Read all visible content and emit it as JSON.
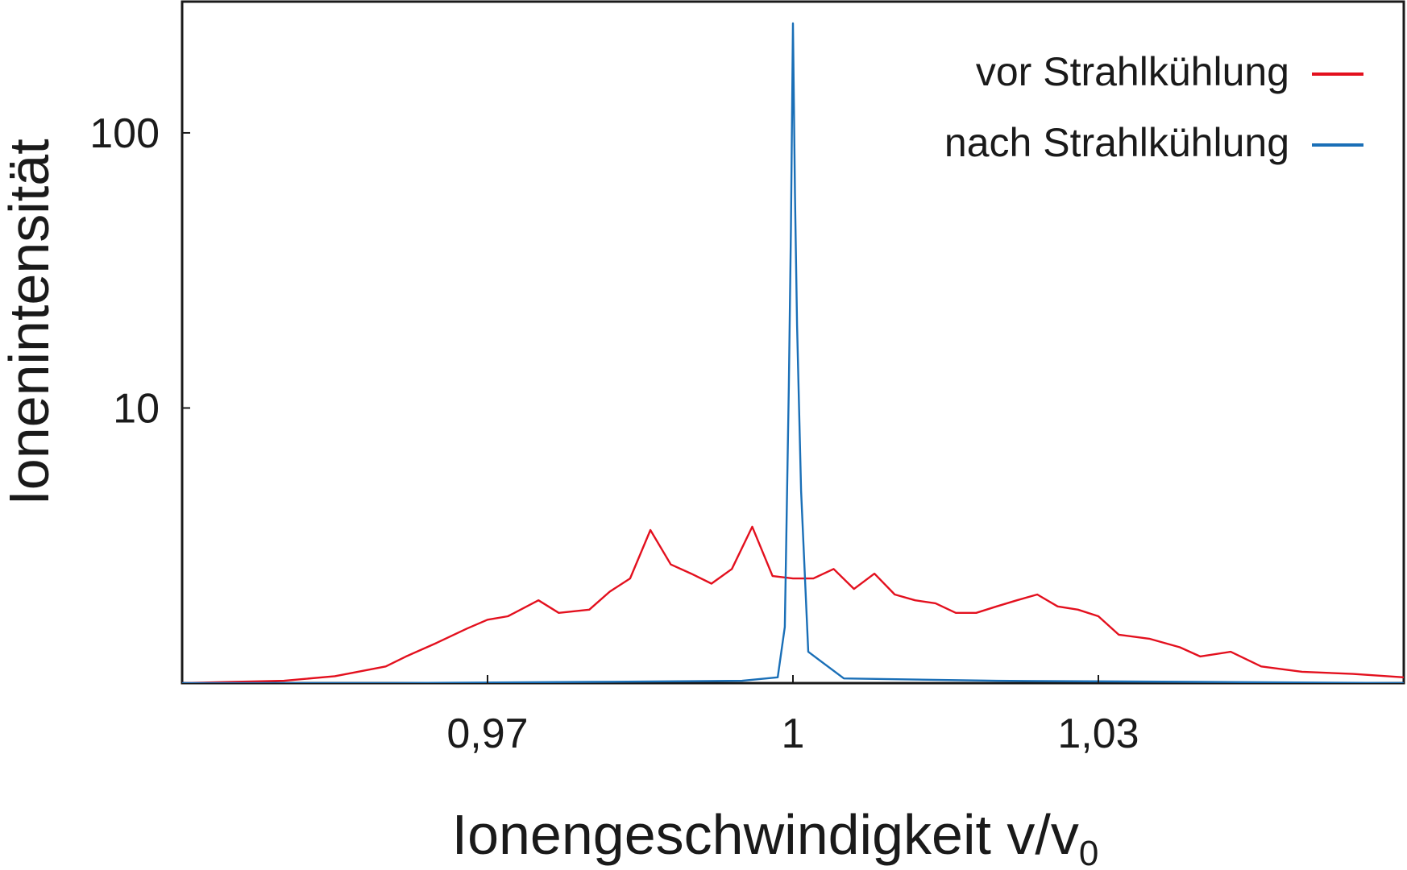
{
  "chart_data": {
    "type": "line",
    "title": "",
    "xlabel": "Ionengeschwindigkeit v/v",
    "xlabel_subscript": "0",
    "ylabel": "Ionenintensität",
    "x_scale": "linear",
    "y_scale": "log",
    "xlim": [
      0.94,
      1.06
    ],
    "ylim": [
      1.0,
      300
    ],
    "x_ticks": [
      {
        "value": 0.97,
        "label": "0,97"
      },
      {
        "value": 1.0,
        "label": "1"
      },
      {
        "value": 1.03,
        "label": "1,03"
      }
    ],
    "y_ticks": [
      {
        "value": 10,
        "label": "10"
      },
      {
        "value": 100,
        "label": "100"
      }
    ],
    "grid": false,
    "legend_position": "top-right",
    "series": [
      {
        "name": "vor Strahlkühlung",
        "color": "#e3101e",
        "x": [
          0.94,
          0.945,
          0.95,
          0.955,
          0.96,
          0.962,
          0.965,
          0.968,
          0.97,
          0.972,
          0.975,
          0.977,
          0.98,
          0.982,
          0.984,
          0.986,
          0.988,
          0.99,
          0.992,
          0.994,
          0.996,
          0.998,
          1.0,
          1.002,
          1.004,
          1.006,
          1.008,
          1.01,
          1.012,
          1.014,
          1.016,
          1.018,
          1.02,
          1.022,
          1.024,
          1.026,
          1.028,
          1.03,
          1.032,
          1.035,
          1.038,
          1.04,
          1.043,
          1.046,
          1.05,
          1.055,
          1.06
        ],
        "y": [
          1.0,
          1.01,
          1.02,
          1.06,
          1.15,
          1.25,
          1.4,
          1.58,
          1.7,
          1.75,
          2.0,
          1.8,
          1.85,
          2.15,
          2.4,
          3.6,
          2.7,
          2.5,
          2.3,
          2.6,
          3.7,
          2.45,
          2.4,
          2.4,
          2.6,
          2.2,
          2.5,
          2.1,
          2.0,
          1.95,
          1.8,
          1.8,
          1.9,
          2.0,
          2.1,
          1.9,
          1.85,
          1.75,
          1.5,
          1.45,
          1.35,
          1.25,
          1.3,
          1.15,
          1.1,
          1.08,
          1.05
        ]
      },
      {
        "name": "nach Strahlkühlung",
        "color": "#1a6fb7",
        "x": [
          0.94,
          0.96,
          0.98,
          0.995,
          0.9985,
          0.9992,
          0.9996,
          0.9998,
          1.0,
          1.0002,
          1.0004,
          1.0008,
          1.0015,
          1.005,
          1.02,
          1.04,
          1.06
        ],
        "y": [
          1.0,
          1.0,
          1.01,
          1.02,
          1.05,
          1.6,
          12,
          45,
          250,
          60,
          20,
          5,
          1.3,
          1.04,
          1.02,
          1.01,
          1.0
        ]
      }
    ]
  }
}
